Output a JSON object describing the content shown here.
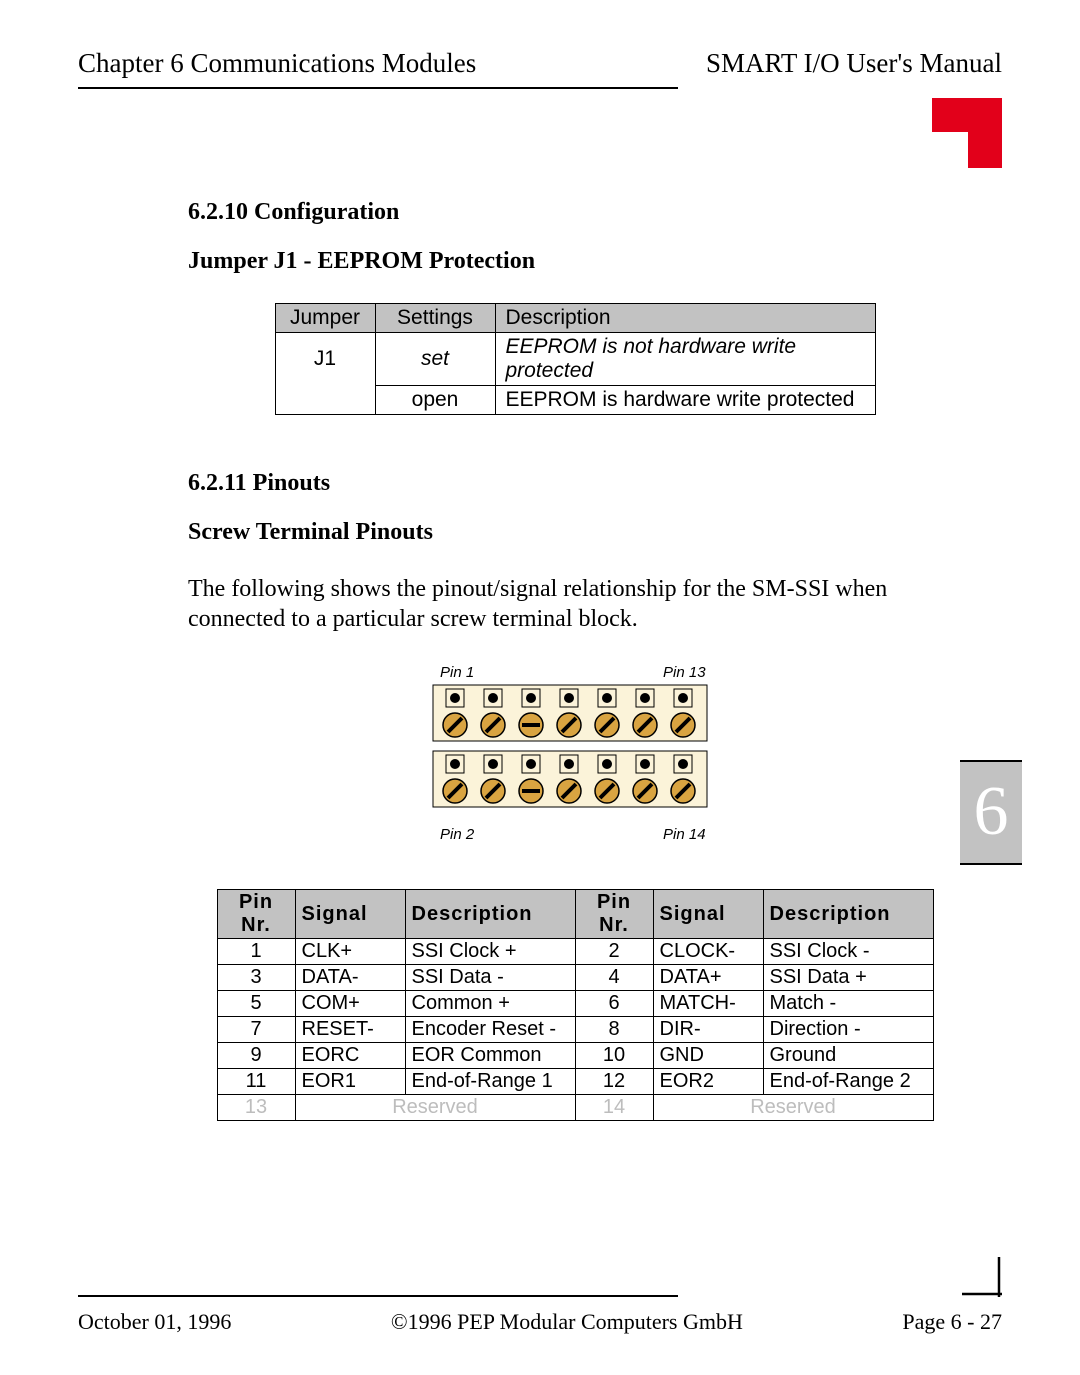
{
  "header": {
    "left": "Chapter 6  Communications Modules",
    "right": "SMART I/O User's Manual"
  },
  "redTab": {
    "color": "#e2001a"
  },
  "section1": {
    "heading": "6.2.10 Configuration",
    "subheading": "Jumper J1 - EEPROM Protection",
    "table": {
      "headers": [
        "Jumper",
        "Settings",
        "Description"
      ],
      "rows": [
        {
          "jumper": "J1",
          "setting": "set",
          "setting_italic": true,
          "desc": "EEPROM is not hardware write protected",
          "desc_italic": true
        },
        {
          "jumper": "",
          "setting": "open",
          "setting_italic": false,
          "desc": "EEPROM is hardware write protected",
          "desc_italic": false
        }
      ],
      "header_bg": "#c2c2c2",
      "border_color": "#000000"
    }
  },
  "section2": {
    "heading": "6.2.11 Pinouts",
    "subheading": "Screw Terminal Pinouts",
    "paragraph": "The following shows the pinout/signal relationship for the SM-SSI when connected to a particular screw terminal block."
  },
  "diagram": {
    "labels": {
      "tl": "Pin 1",
      "tr": "Pin 13",
      "bl": "Pin 2",
      "br": "Pin 14"
    },
    "colors": {
      "block_fill": "#fbf3d9",
      "block_stroke": "#000000",
      "screw_fill": "#d9a441",
      "screw_stroke": "#000000",
      "pin_stroke": "#000000",
      "name_dot": "#000000"
    },
    "terminals_per_row": 7,
    "screw_slot_types": [
      "diag",
      "diag",
      "horiz",
      "diag",
      "diag",
      "diag",
      "diag"
    ]
  },
  "pinoutTable": {
    "headers": [
      "Pin Nr.",
      "Signal",
      "Description",
      "Pin Nr.",
      "Signal",
      "Description"
    ],
    "header_bg": "#c2c2c2",
    "reserved_color": "#bdbdbd",
    "rows": [
      {
        "l": {
          "pin": "1",
          "sig": "CLK+",
          "desc": "SSI Clock +"
        },
        "r": {
          "pin": "2",
          "sig": "CLOCK-",
          "desc": "SSI Clock -"
        }
      },
      {
        "l": {
          "pin": "3",
          "sig": "DATA-",
          "desc": "SSI Data -"
        },
        "r": {
          "pin": "4",
          "sig": "DATA+",
          "desc": "SSI Data +"
        }
      },
      {
        "l": {
          "pin": "5",
          "sig": "COM+",
          "desc": "Common +"
        },
        "r": {
          "pin": "6",
          "sig": "MATCH-",
          "desc": "Match -"
        }
      },
      {
        "l": {
          "pin": "7",
          "sig": "RESET-",
          "desc": "Encoder Reset -"
        },
        "r": {
          "pin": "8",
          "sig": "DIR-",
          "desc": "Direction -"
        }
      },
      {
        "l": {
          "pin": "9",
          "sig": "EORC",
          "desc": "EOR Common"
        },
        "r": {
          "pin": "10",
          "sig": "GND",
          "desc": "Ground"
        }
      },
      {
        "l": {
          "pin": "11",
          "sig": "EOR1",
          "desc": "End-of-Range 1"
        },
        "r": {
          "pin": "12",
          "sig": "EOR2",
          "desc": "End-of-Range 2"
        }
      }
    ],
    "reservedRow": {
      "l_pin": "13",
      "l_text": "Reserved",
      "r_pin": "14",
      "r_text": "Reserved"
    }
  },
  "sideChapter": {
    "number": "6",
    "bg": "#c2c2c2",
    "fg": "#ffffff"
  },
  "footer": {
    "left": "October 01, 1996",
    "center": "©1996 PEP Modular Computers GmbH",
    "right": "Page 6 - 27"
  }
}
